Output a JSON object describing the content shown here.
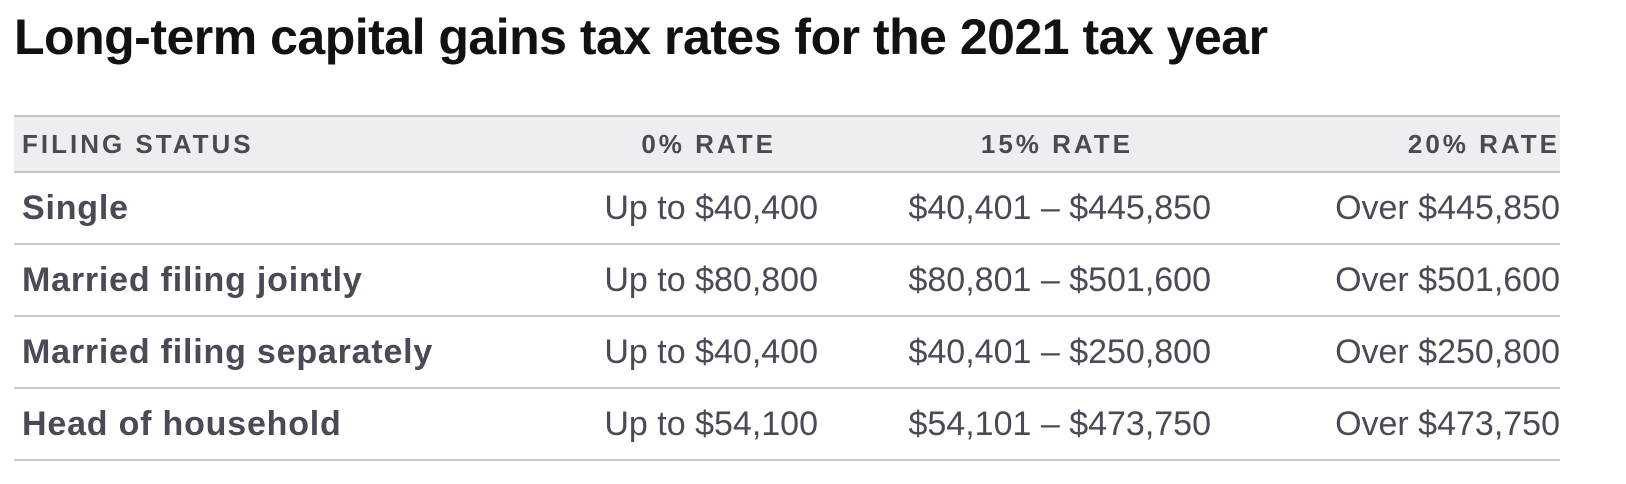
{
  "title": "Long-term capital gains tax rates for the 2021 tax year",
  "table": {
    "headers": {
      "status": "FILING STATUS",
      "zero": "0% RATE",
      "fifteen": "15% RATE",
      "twenty": "20% RATE"
    },
    "rows": [
      {
        "status": "Single",
        "zero": "Up to $40,400",
        "fifteen": "$40,401 – $445,850",
        "twenty": "Over $445,850"
      },
      {
        "status": "Married filing jointly",
        "zero": "Up to $80,800",
        "fifteen": "$80,801 – $501,600",
        "twenty": "Over $501,600"
      },
      {
        "status": "Married filing separately",
        "zero": "Up to $40,400",
        "fifteen": "$40,401 – $250,800",
        "twenty": "Over $250,800"
      },
      {
        "status": "Head of household",
        "zero": "Up to $54,100",
        "fifteen": "$54,101 – $473,750",
        "twenty": "Over $473,750"
      }
    ]
  }
}
